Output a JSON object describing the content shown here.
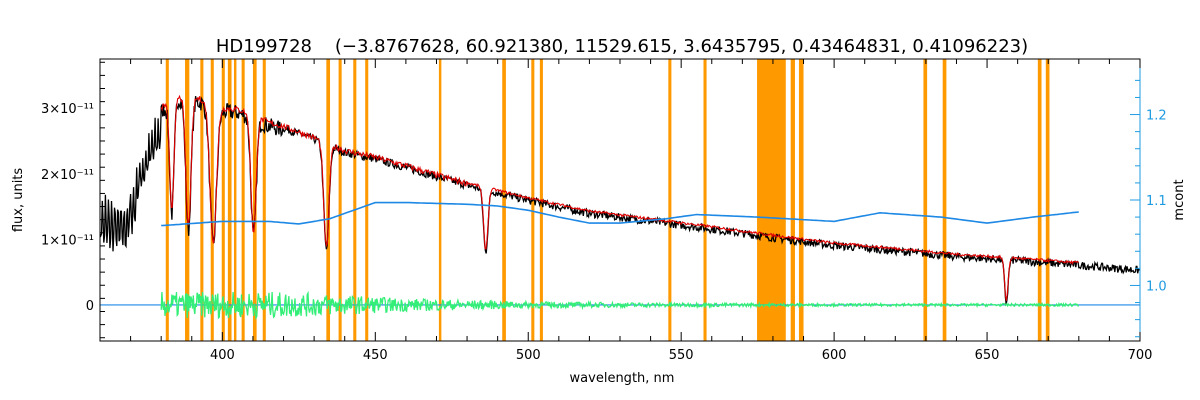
{
  "chart_data": {
    "type": "line",
    "title": "HD199728    (−3.8767628, 60.921380, 11529.615, 3.6435795, 0.43464831, 0.41096223)",
    "xlabel": "wavelength, nm",
    "ylabel": "flux, units",
    "y2label": "mcont",
    "xlim": [
      360,
      700
    ],
    "ylim": [
      -5.5e-12,
      3.75e-11
    ],
    "y2lim": [
      0.935,
      1.265
    ],
    "x_ticks": [
      {
        "value": 400,
        "label": "400"
      },
      {
        "value": 450,
        "label": "450"
      },
      {
        "value": 500,
        "label": "500"
      },
      {
        "value": 550,
        "label": "550"
      },
      {
        "value": 600,
        "label": "600"
      },
      {
        "value": 650,
        "label": "650"
      },
      {
        "value": 700,
        "label": "700"
      }
    ],
    "y_ticks": [
      {
        "value": 0,
        "label": "0"
      },
      {
        "value": 1e-11,
        "label": "1×10⁻¹¹"
      },
      {
        "value": 2e-11,
        "label": "2×10⁻¹¹"
      },
      {
        "value": 3e-11,
        "label": "3×10⁻¹¹"
      }
    ],
    "y2_ticks": [
      {
        "value": 1.0,
        "label": "1.0"
      },
      {
        "value": 1.1,
        "label": "1.1"
      },
      {
        "value": 1.2,
        "label": "1.2"
      }
    ],
    "colors": {
      "observed": "#000000",
      "model": "#e00000",
      "residual": "#33ee77",
      "continuum": "#1e88e5",
      "mask": "#ff9900",
      "right_axis": "#1e9be0"
    },
    "masked_bands": [
      [
        381.5,
        382.5
      ],
      [
        387.8,
        389.2
      ],
      [
        392.8,
        393.8
      ],
      [
        396.2,
        397.2
      ],
      [
        399.8,
        400.8
      ],
      [
        401.8,
        403.0
      ],
      [
        403.8,
        404.6
      ],
      [
        406.3,
        407.3
      ],
      [
        410.0,
        411.2
      ],
      [
        413.2,
        414.2
      ],
      [
        434.0,
        435.2
      ],
      [
        438.0,
        439.0
      ],
      [
        442.8,
        443.8
      ],
      [
        446.7,
        447.7
      ],
      [
        470.8,
        471.6
      ],
      [
        491.5,
        492.7
      ],
      [
        501.0,
        502.0
      ],
      [
        503.8,
        504.8
      ],
      [
        545.8,
        546.8
      ],
      [
        557.3,
        558.3
      ],
      [
        574.8,
        584.2
      ],
      [
        585.8,
        587.2
      ],
      [
        588.5,
        590.0
      ],
      [
        629.2,
        630.4
      ],
      [
        635.5,
        636.7
      ],
      [
        666.6,
        667.8
      ],
      [
        669.2,
        670.4
      ]
    ],
    "series": [
      {
        "key": "observed",
        "x_range": [
          360,
          700
        ],
        "continuum_points": [
          [
            360,
            1.78e-11
          ],
          [
            368,
            1.7e-11
          ],
          [
            375,
            2.5e-11
          ],
          [
            380,
            3e-11
          ],
          [
            385,
            3.2e-11
          ],
          [
            390,
            3.18e-11
          ],
          [
            395,
            3.1e-11
          ],
          [
            400,
            3e-11
          ],
          [
            405,
            2.98e-11
          ],
          [
            410,
            2.9e-11
          ],
          [
            415,
            2.78e-11
          ],
          [
            420,
            2.72e-11
          ],
          [
            430,
            2.55e-11
          ],
          [
            440,
            2.35e-11
          ],
          [
            450,
            2.25e-11
          ],
          [
            460,
            2.12e-11
          ],
          [
            470,
            1.98e-11
          ],
          [
            480,
            1.85e-11
          ],
          [
            500,
            1.62e-11
          ],
          [
            520,
            1.42e-11
          ],
          [
            540,
            1.3e-11
          ],
          [
            560,
            1.18e-11
          ],
          [
            580,
            1.05e-11
          ],
          [
            600,
            9.3e-12
          ],
          [
            620,
            8.5e-12
          ],
          [
            640,
            7.6e-12
          ],
          [
            660,
            7e-12
          ],
          [
            680,
            6.3e-12
          ],
          [
            700,
            5.5e-12
          ]
        ],
        "absorption_lines": [
          {
            "center": 383.5,
            "depth": 1.7e-11,
            "width": 1.0
          },
          {
            "center": 388.9,
            "depth": 2e-11,
            "width": 1.2
          },
          {
            "center": 397.0,
            "depth": 2.1e-11,
            "width": 1.5
          },
          {
            "center": 410.2,
            "depth": 1.8e-11,
            "width": 1.2
          },
          {
            "center": 434.0,
            "depth": 1.6e-11,
            "width": 1.2
          },
          {
            "center": 486.1,
            "depth": 9.5e-12,
            "width": 1.0
          },
          {
            "center": 656.3,
            "depth": 6.5e-12,
            "width": 0.8
          }
        ]
      },
      {
        "key": "model",
        "x_range": [
          380,
          680
        ]
      },
      {
        "key": "residual",
        "x_range": [
          380,
          680
        ],
        "noise_scale": [
          [
            380,
            2e-12
          ],
          [
            420,
            2e-12
          ],
          [
            460,
            1e-12
          ],
          [
            500,
            5e-13
          ],
          [
            550,
            3e-13
          ],
          [
            600,
            2e-13
          ],
          [
            680,
            2e-13
          ]
        ]
      },
      {
        "key": "continuum",
        "axis": "right",
        "points": [
          [
            380,
            1.07
          ],
          [
            400,
            1.075
          ],
          [
            415,
            1.075
          ],
          [
            425,
            1.072
          ],
          [
            435,
            1.078
          ],
          [
            450,
            1.097
          ],
          [
            460,
            1.097
          ],
          [
            470,
            1.096
          ],
          [
            480,
            1.095
          ],
          [
            490,
            1.093
          ],
          [
            500,
            1.088
          ],
          [
            510,
            1.08
          ],
          [
            520,
            1.073
          ],
          [
            530,
            1.073
          ],
          [
            545,
            1.078
          ],
          [
            555,
            1.083
          ],
          [
            575,
            1.08
          ],
          [
            600,
            1.075
          ],
          [
            615,
            1.085
          ],
          [
            635,
            1.08
          ],
          [
            650,
            1.073
          ],
          [
            665,
            1.08
          ],
          [
            680,
            1.086
          ]
        ],
        "zero_line_range": [
          360,
          700
        ]
      }
    ]
  }
}
